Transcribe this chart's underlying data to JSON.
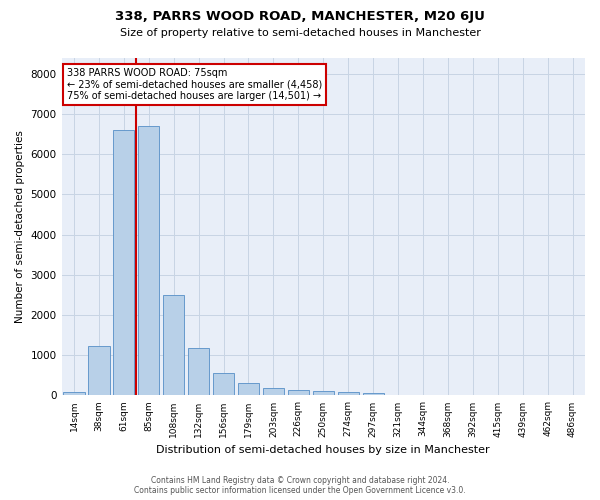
{
  "title": "338, PARRS WOOD ROAD, MANCHESTER, M20 6JU",
  "subtitle": "Size of property relative to semi-detached houses in Manchester",
  "xlabel": "Distribution of semi-detached houses by size in Manchester",
  "ylabel": "Number of semi-detached properties",
  "footer_line1": "Contains HM Land Registry data © Crown copyright and database right 2024.",
  "footer_line2": "Contains public sector information licensed under the Open Government Licence v3.0.",
  "annotation_title": "338 PARRS WOOD ROAD: 75sqm",
  "annotation_line2": "← 23% of semi-detached houses are smaller (4,458)",
  "annotation_line3": "75% of semi-detached houses are larger (14,501) →",
  "bar_color": "#b8d0e8",
  "bar_edge_color": "#6699cc",
  "vline_color": "#cc0000",
  "categories": [
    "14sqm",
    "38sqm",
    "61sqm",
    "85sqm",
    "108sqm",
    "132sqm",
    "156sqm",
    "179sqm",
    "203sqm",
    "226sqm",
    "250sqm",
    "274sqm",
    "297sqm",
    "321sqm",
    "344sqm",
    "368sqm",
    "392sqm",
    "415sqm",
    "439sqm",
    "462sqm",
    "486sqm"
  ],
  "values": [
    75,
    1220,
    6600,
    6700,
    2500,
    1190,
    560,
    320,
    185,
    125,
    110,
    85,
    65,
    0,
    0,
    0,
    0,
    0,
    0,
    0,
    0
  ],
  "ylim": [
    0,
    8400
  ],
  "yticks": [
    0,
    1000,
    2000,
    3000,
    4000,
    5000,
    6000,
    7000,
    8000
  ],
  "grid_color": "#c8d4e4",
  "bg_color": "#e8eef8",
  "vline_x": 2.5
}
